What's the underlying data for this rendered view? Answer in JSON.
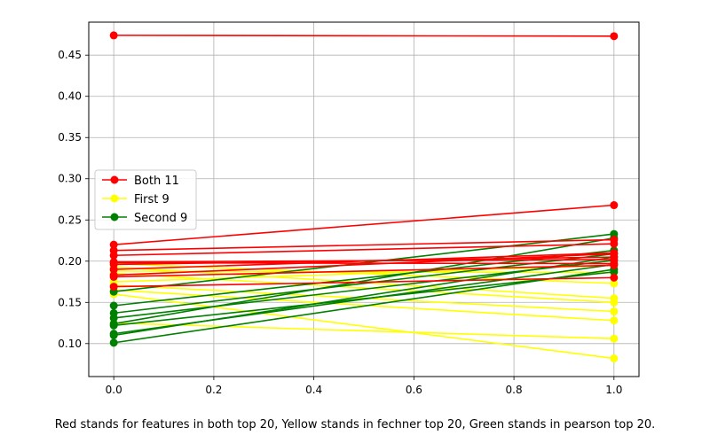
{
  "caption": "Red stands for features in both top 20, Yellow stands in fechner top 20, Green stands in pearson top 20.",
  "colors": {
    "both": "#ff0000",
    "first": "#ffff00",
    "second": "#008000",
    "grid": "#b0b0b0"
  },
  "chart_data": {
    "type": "line",
    "title": "",
    "xlabel": "",
    "ylabel": "",
    "xlim": [
      -0.05,
      1.05
    ],
    "ylim": [
      0.06,
      0.49
    ],
    "x_ticks": [
      0.0,
      0.2,
      0.4,
      0.6,
      0.8,
      1.0
    ],
    "x_tick_labels": [
      "0.0",
      "0.2",
      "0.4",
      "0.6",
      "0.8",
      "1.0"
    ],
    "y_ticks": [
      0.1,
      0.15,
      0.2,
      0.25,
      0.3,
      0.35,
      0.4,
      0.45
    ],
    "y_tick_labels": [
      "0.10",
      "0.15",
      "0.20",
      "0.25",
      "0.30",
      "0.35",
      "0.40",
      "0.45"
    ],
    "grid": true,
    "legend_position": "center-left",
    "x": [
      0,
      1
    ],
    "series": [
      {
        "name": "Both 11",
        "color": "#ff0000",
        "lines": [
          [
            0.474,
            0.473
          ],
          [
            0.22,
            0.268
          ],
          [
            0.213,
            0.226
          ],
          [
            0.207,
            0.221
          ],
          [
            0.199,
            0.202
          ],
          [
            0.198,
            0.197
          ],
          [
            0.196,
            0.205
          ],
          [
            0.19,
            0.21
          ],
          [
            0.183,
            0.209
          ],
          [
            0.181,
            0.195
          ],
          [
            0.169,
            0.18
          ]
        ]
      },
      {
        "name": "First 9",
        "color": "#ffff00",
        "lines": [
          [
            0.197,
            0.173
          ],
          [
            0.193,
            0.155
          ],
          [
            0.188,
            0.186
          ],
          [
            0.185,
            0.15
          ],
          [
            0.175,
            0.195
          ],
          [
            0.171,
            0.139
          ],
          [
            0.165,
            0.128
          ],
          [
            0.16,
            0.082
          ],
          [
            0.125,
            0.106
          ]
        ]
      },
      {
        "name": "Second 9",
        "color": "#008000",
        "lines": [
          [
            0.163,
            0.233
          ],
          [
            0.146,
            0.213
          ],
          [
            0.137,
            0.209
          ],
          [
            0.131,
            0.201
          ],
          [
            0.124,
            0.228
          ],
          [
            0.122,
            0.187
          ],
          [
            0.112,
            0.196
          ],
          [
            0.11,
            0.205
          ],
          [
            0.101,
            0.19
          ]
        ]
      }
    ]
  }
}
